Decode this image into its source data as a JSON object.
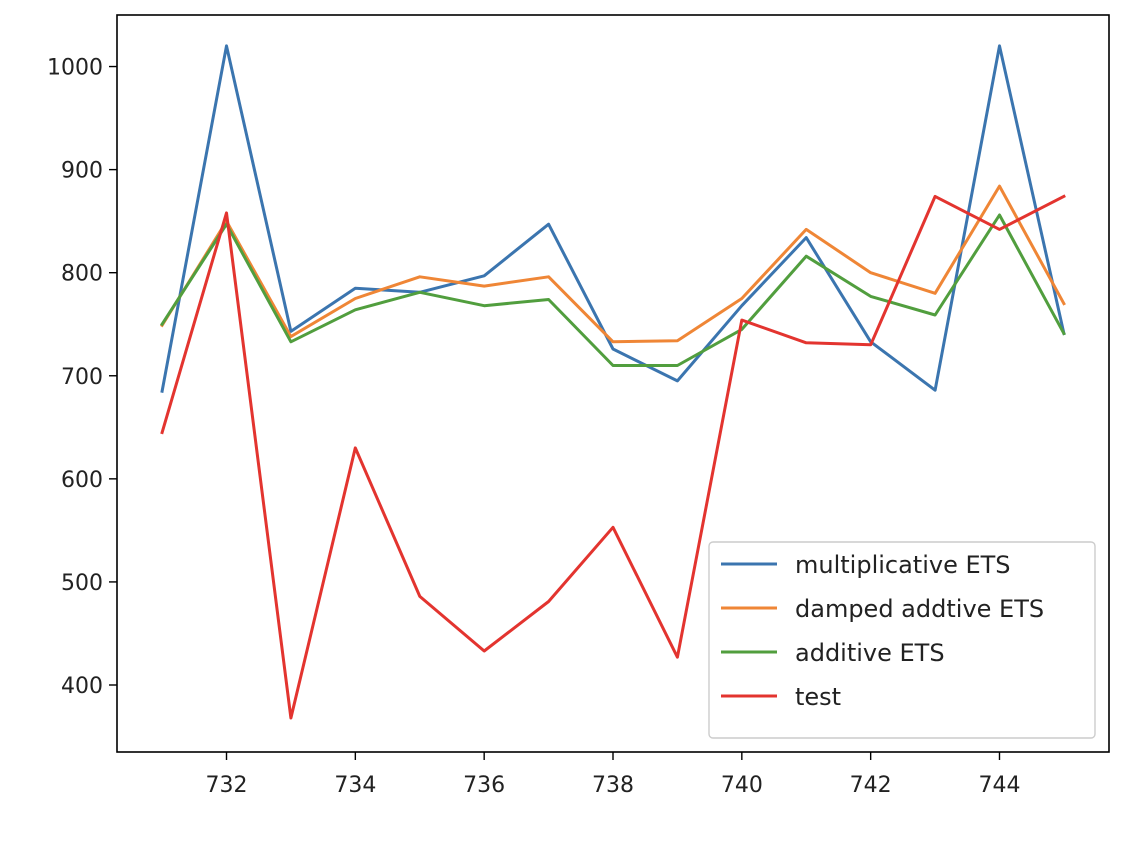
{
  "chart_data": {
    "type": "line",
    "title": "",
    "xlabel": "",
    "ylabel": "",
    "xlim": [
      730.3,
      745.7
    ],
    "ylim": [
      335,
      1050
    ],
    "x_ticks": [
      732,
      734,
      736,
      738,
      740,
      742,
      744
    ],
    "y_ticks": [
      400,
      500,
      600,
      700,
      800,
      900,
      1000
    ],
    "legend_position": "lower-right",
    "x": [
      731,
      732,
      733,
      734,
      735,
      736,
      737,
      738,
      739,
      740,
      741,
      742,
      743,
      744,
      745
    ],
    "series": [
      {
        "name": "multiplicative ETS",
        "color": "#3b75af",
        "values": [
          685,
          1020,
          743,
          785,
          781,
          797,
          847,
          726,
          695,
          768,
          834,
          733,
          686,
          1020,
          741
        ]
      },
      {
        "name": "damped addtive ETS",
        "color": "#ef8636",
        "values": [
          749,
          850,
          738,
          775,
          796,
          787,
          796,
          733,
          734,
          775,
          842,
          800,
          780,
          884,
          770
        ]
      },
      {
        "name": "additive ETS",
        "color": "#519e3e",
        "values": [
          750,
          847,
          733,
          764,
          781,
          768,
          774,
          710,
          710,
          745,
          816,
          777,
          759,
          856,
          741
        ]
      },
      {
        "name": "test",
        "color": "#e3342f",
        "values": [
          645,
          858,
          368,
          630,
          486,
          433,
          481,
          553,
          427,
          754,
          732,
          730,
          874,
          842,
          874
        ]
      }
    ]
  }
}
